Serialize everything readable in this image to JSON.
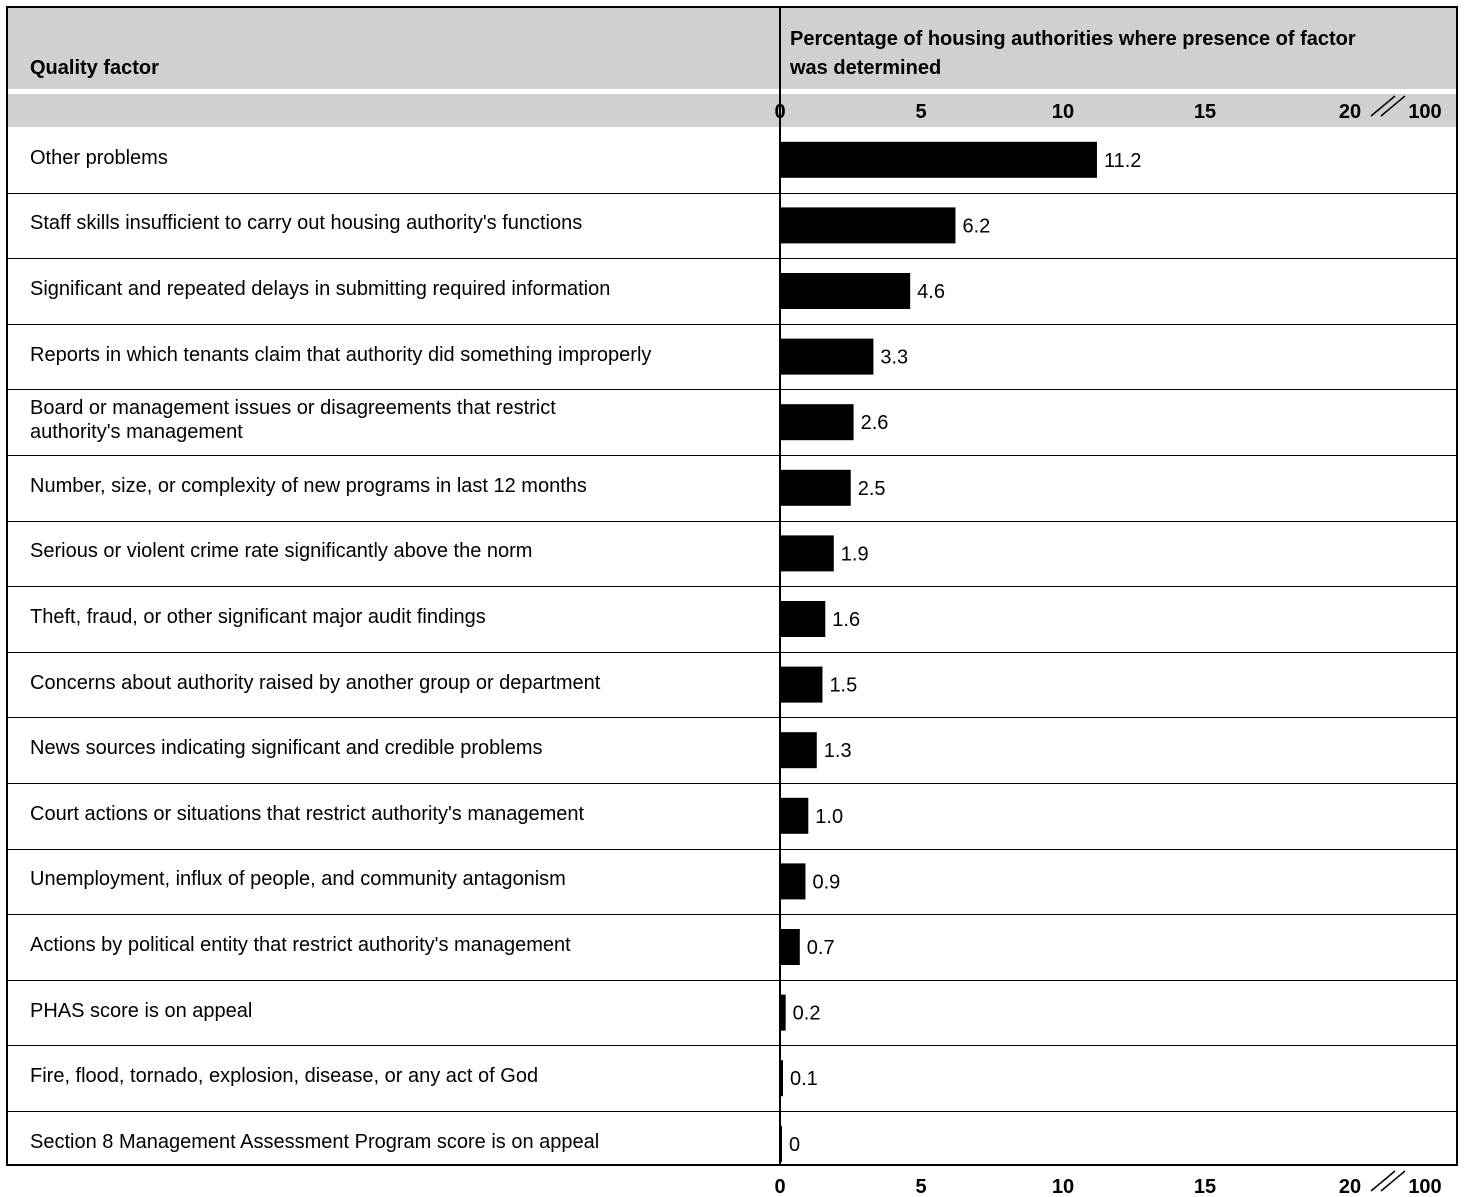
{
  "header": {
    "left_title": "Quality factor",
    "right_title": "Percentage of housing authorities where presence of factor was determined"
  },
  "chart_data": {
    "type": "bar",
    "orientation": "horizontal",
    "xlim": [
      0,
      20
    ],
    "axis_break": true,
    "ticks": [
      "0",
      "5",
      "10",
      "15",
      "20",
      "100"
    ],
    "bar_color": "#000000",
    "categories": [
      "Other problems",
      "Staff skills insufficient to carry out housing authority's functions",
      "Significant and repeated delays in submitting required information",
      "Reports in which tenants claim that authority did something improperly",
      "Board or management issues or disagreements that restrict authority's management",
      "Number, size, or complexity of new programs in last 12 months",
      "Serious or violent crime rate significantly above the norm",
      "Theft, fraud, or other significant major audit findings",
      "Concerns about authority raised by another group or department",
      "News sources indicating significant and credible problems",
      "Court actions or situations that restrict authority's management",
      "Unemployment, influx of people, and community antagonism",
      "Actions by political entity that restrict authority's management",
      "PHAS score is on appeal",
      "Fire, flood, tornado, explosion, disease, or any act of God",
      "Section 8 Management Assessment Program score is on appeal"
    ],
    "values": [
      11.2,
      6.2,
      4.6,
      3.3,
      2.6,
      2.5,
      1.9,
      1.6,
      1.5,
      1.3,
      1.0,
      0.9,
      0.7,
      0.2,
      0.1,
      0
    ],
    "value_labels": [
      "11.2",
      "6.2",
      "4.6",
      "3.3",
      "2.6",
      "2.5",
      "1.9",
      "1.6",
      "1.5",
      "1.3",
      "1.0",
      "0.9",
      "0.7",
      "0.2",
      "0.1",
      "0"
    ]
  }
}
